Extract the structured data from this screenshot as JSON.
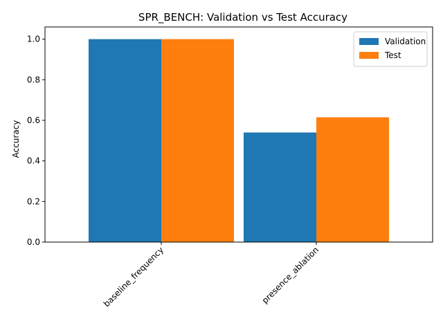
{
  "chart_data": {
    "type": "bar",
    "title": "SPR_BENCH: Validation vs Test Accuracy",
    "xlabel": "",
    "ylabel": "Accuracy",
    "categories": [
      "baseline_frequency",
      "presence_ablation"
    ],
    "series": [
      {
        "name": "Validation",
        "values": [
          1.0,
          0.54
        ],
        "color": "#1f77b4"
      },
      {
        "name": "Test",
        "values": [
          1.0,
          0.615
        ],
        "color": "#ff7f0e"
      }
    ],
    "ylim": [
      0,
      1.06
    ],
    "yticks": [
      0.0,
      0.2,
      0.4,
      0.6,
      0.8,
      1.0
    ],
    "ytick_labels": [
      "0.0",
      "0.2",
      "0.4",
      "0.6",
      "0.8",
      "1.0"
    ],
    "xtick_rotation": -45,
    "grid": false,
    "legend_position": "top-right"
  }
}
